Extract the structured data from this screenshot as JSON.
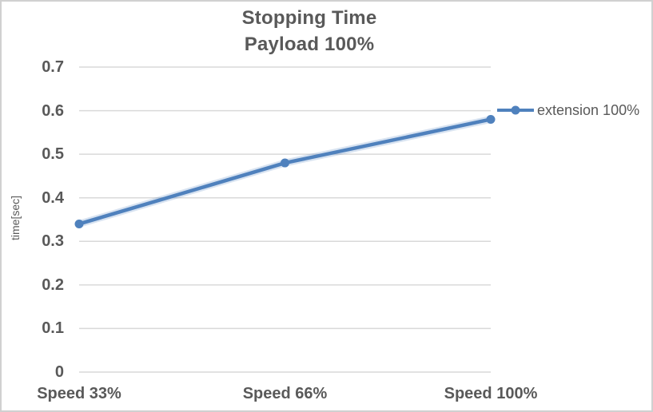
{
  "chart_data": {
    "type": "line",
    "title": "Stopping Time",
    "subtitle": "Payload 100%",
    "ylabel": "time[sec]",
    "xlabel": "",
    "categories": [
      "Speed 33%",
      "Speed 66%",
      "Speed 100%"
    ],
    "series": [
      {
        "name": "extension 100%",
        "values": [
          0.34,
          0.48,
          0.58
        ]
      }
    ],
    "ylim": [
      0,
      0.7
    ],
    "ytick_labels": [
      "0",
      "0.1",
      "0.2",
      "0.3",
      "0.4",
      "0.5",
      "0.6",
      "0.7"
    ],
    "grid": "horizontal",
    "legend_position": "right",
    "marker": "circle",
    "colors": {
      "series_line": "#4F81BD",
      "text": "#595959",
      "gridline": "#D9D9D9",
      "chart_border": "#D0D0D0",
      "background": "#FFFFFF"
    }
  }
}
